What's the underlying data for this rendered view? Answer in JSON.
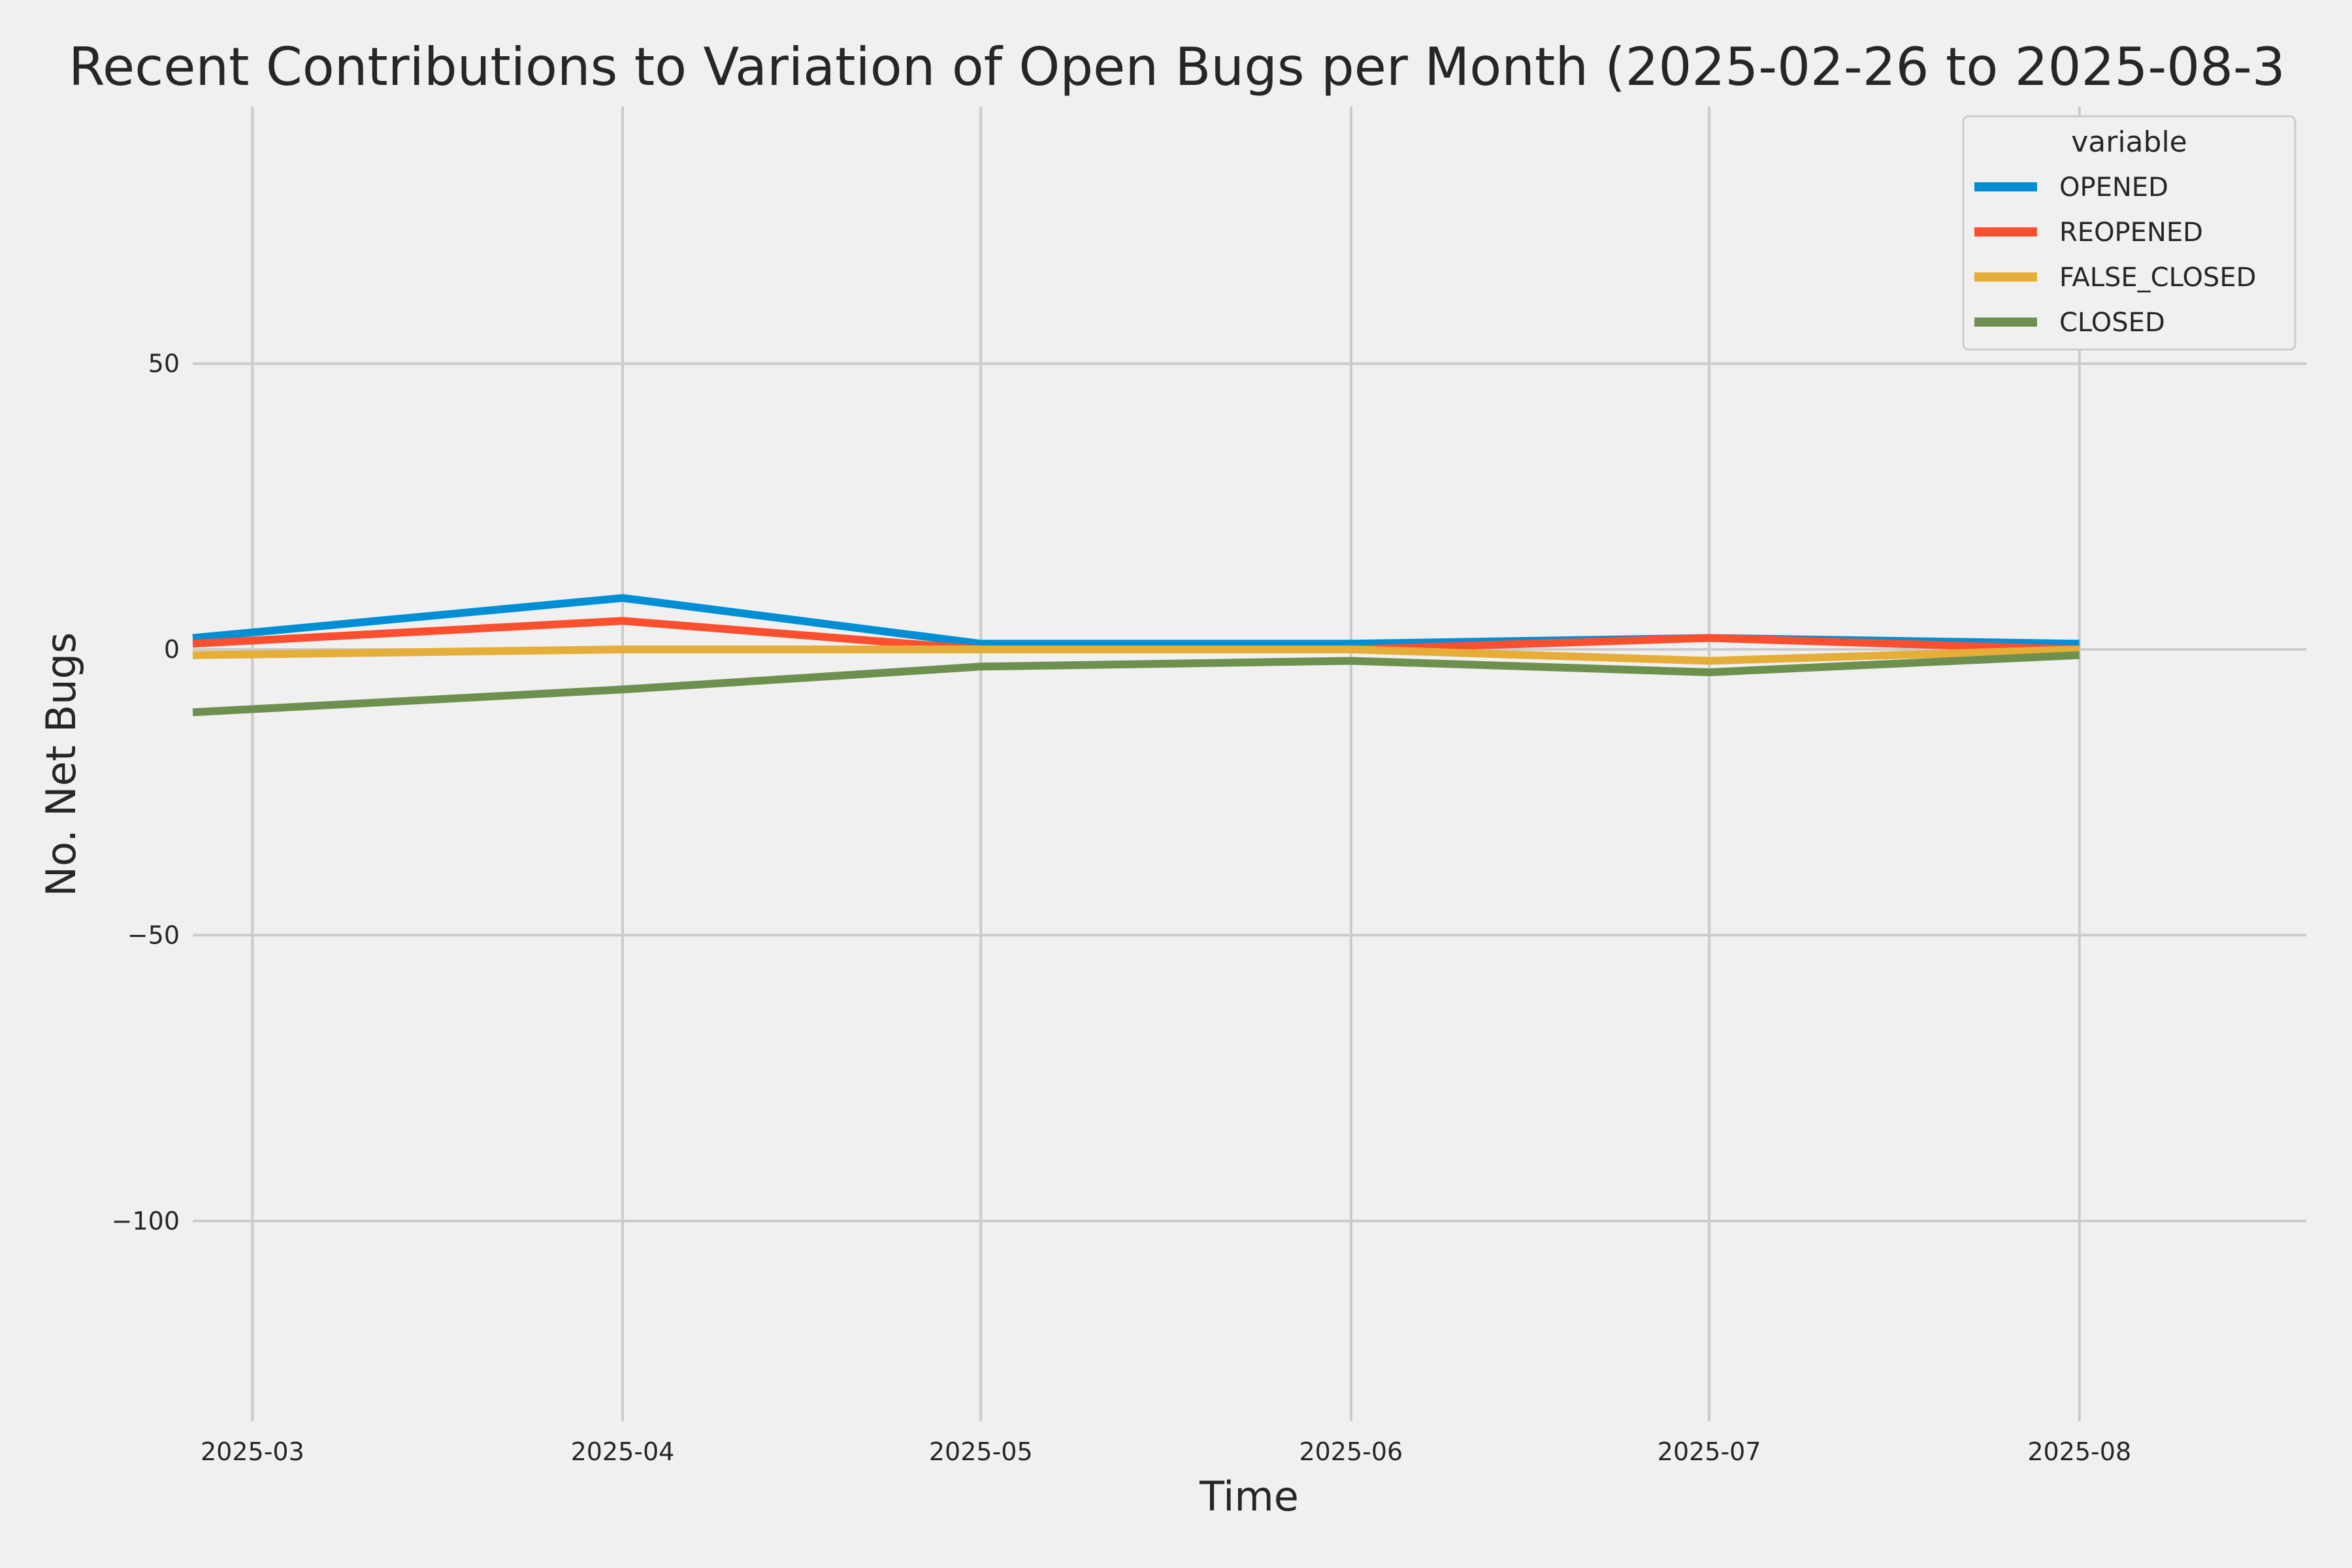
{
  "chart_data": {
    "type": "line",
    "title": "Recent Contributions to Variation of Open Bugs per Month (2025-02-26 to 2025-08-3",
    "xlabel": "Time",
    "ylabel": "No. Net Bugs",
    "x": [
      "2025-02-26",
      "2025-04-01",
      "2025-05-01",
      "2025-06-01",
      "2025-07-01",
      "2025-08-01"
    ],
    "xlim": [
      "2025-02-24",
      "2025-08-20"
    ],
    "x_ticks": [
      "2025-03",
      "2025-04",
      "2025-05",
      "2025-06",
      "2025-07",
      "2025-08"
    ],
    "ylim": [
      -135,
      95
    ],
    "y_ticks": [
      50,
      0,
      -50,
      -100
    ],
    "y_tick_labels": [
      "50",
      "0",
      "−50",
      "−100"
    ],
    "grid": true,
    "legend": {
      "title": "variable",
      "placement": "top-right"
    },
    "series": [
      {
        "name": "OPENED",
        "color": "#008fd5",
        "values": [
          2,
          9,
          1,
          1,
          2,
          1
        ]
      },
      {
        "name": "REOPENED",
        "color": "#fc4f30",
        "values": [
          1,
          5,
          0,
          0,
          2,
          0
        ]
      },
      {
        "name": "FALSE_CLOSED",
        "color": "#e5ae38",
        "values": [
          -1,
          0,
          0,
          0,
          -2,
          0
        ]
      },
      {
        "name": "CLOSED",
        "color": "#6d904f",
        "values": [
          -11,
          -7,
          -3,
          -2,
          -4,
          -1
        ]
      }
    ]
  }
}
